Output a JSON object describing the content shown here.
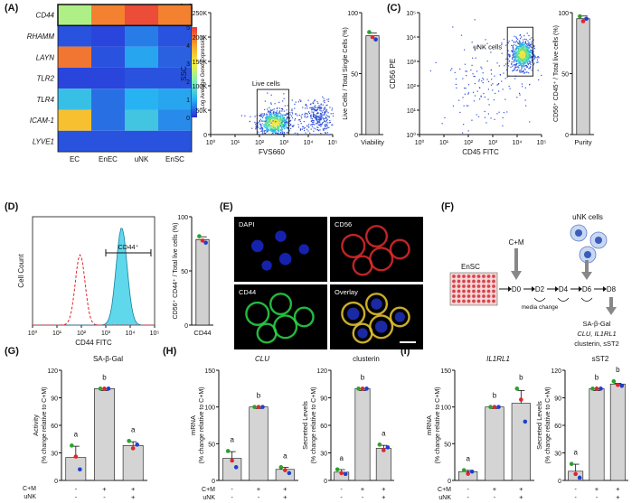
{
  "panels": {
    "A": "(A)",
    "B": "(B)",
    "C": "(C)",
    "D": "(D)",
    "E": "(E)",
    "F": "(F)",
    "G": "(G)",
    "H": "(H)",
    "I": "(I)"
  },
  "heatmap": {
    "rows": [
      "CD44",
      "RHAMM",
      "LAYN",
      "TLR2",
      "TLR4",
      "ICAM-1",
      "LYVE1"
    ],
    "cols": [
      "EC",
      "EnEC",
      "uNK",
      "EnSC"
    ],
    "values": [
      [
        2.4,
        4.3,
        4.8,
        4.3
      ],
      [
        0.3,
        0.2,
        0.6,
        0.3
      ],
      [
        4.4,
        0.3,
        0.9,
        0.4
      ],
      [
        0.2,
        0.2,
        0.3,
        0.3
      ],
      [
        1.2,
        0.5,
        1.0,
        0.9
      ],
      [
        3.6,
        0.5,
        1.3,
        0.7
      ],
      [
        0.3,
        0.3,
        0.3,
        0.3
      ]
    ],
    "scale_ticks": [
      "0",
      "1",
      "2",
      "3",
      "4",
      "5"
    ],
    "scale_label": "Log Average Gene Expression",
    "colors": [
      "#2a2ad6",
      "#27b3f2",
      "#7ef0b5",
      "#f7f03c",
      "#f7a02a",
      "#e8383b"
    ]
  },
  "flow_b": {
    "ylabel": "SSC",
    "xlabel": "FVS660",
    "yticks": [
      "0",
      "50K",
      "100K",
      "150K",
      "200K",
      "250K"
    ],
    "xticks": [
      "10⁰",
      "10¹",
      "10²",
      "10³",
      "10⁴",
      "10⁵"
    ],
    "gate": "Live cells"
  },
  "bar_b": {
    "ylabel": "Live Cells / Total Single Cells (%)",
    "xlabel": "Viability",
    "value": 81,
    "yticks": [
      "0",
      "50",
      "100"
    ]
  },
  "flow_c": {
    "ylabel": "CD56 PE",
    "xlabel": "CD45 FITC",
    "yticks": [
      "10⁰",
      "10¹",
      "10²",
      "10³",
      "10⁴",
      "10⁵"
    ],
    "xticks": [
      "10⁰",
      "10¹",
      "10²",
      "10³",
      "10⁴",
      "10⁵"
    ],
    "gate": "uNK cells"
  },
  "bar_c": {
    "ylabel": "CD56⁺ CD45⁺ / Total live cells (%)",
    "xlabel": "Purity",
    "value": 95,
    "yticks": [
      "0",
      "50",
      "100"
    ]
  },
  "hist_d": {
    "ylabel": "Cell Count",
    "xlabel": "CD44 FITC",
    "xticks": [
      "10⁰",
      "10¹",
      "10²",
      "10³",
      "10⁴",
      "10⁵"
    ],
    "gate": "CD44⁺"
  },
  "bar_d": {
    "ylabel": "CD56⁺ CD44⁺ / Total live cells (%)",
    "xlabel": "CD44",
    "value": 79,
    "yticks": [
      "0",
      "50",
      "100"
    ]
  },
  "micro": {
    "dapi": "DAPI",
    "cd56": "CD56",
    "cd44": "CD44",
    "overlay": "Overlay"
  },
  "schematic": {
    "ensc": "EnSC",
    "cm": "C+M",
    "unk": "uNK cells",
    "days": [
      "D0",
      "D2",
      "D4",
      "D6",
      "D8"
    ],
    "media": "media change",
    "readout1": "SA-β-Gal",
    "readout2": "CLU, IL1RL1",
    "readout3": "clusterin, sST2"
  },
  "treat": {
    "cm_label": "C+M",
    "unk_label": "uNK",
    "cm": [
      "-",
      "+",
      "+"
    ],
    "unk": [
      "-",
      "-",
      "+"
    ]
  },
  "chart_data": [
    {
      "type": "bar",
      "title": "SA-β-Gal",
      "ylabel": "Activity",
      "ylabel2": "(% change relative to C+M)",
      "yticks": [
        "0",
        "30",
        "60",
        "90",
        "120"
      ],
      "ylim": [
        0,
        120
      ],
      "values": [
        25,
        100,
        38
      ],
      "letters": [
        "a",
        "b",
        "a"
      ],
      "points": [
        [
          38,
          26,
          12
        ],
        [
          100,
          100,
          100
        ],
        [
          43,
          35,
          39
        ]
      ]
    },
    {
      "type": "bar",
      "title": "CLU",
      "ylabel": "mRNA",
      "ylabel2": "(% change relative to C+M)",
      "yticks": [
        "0",
        "50",
        "100",
        "150"
      ],
      "ylim": [
        0,
        150
      ],
      "values": [
        30,
        100,
        15
      ],
      "letters": [
        "a",
        "b",
        "a"
      ],
      "points": [
        [
          40,
          27,
          18
        ],
        [
          100,
          100,
          100
        ],
        [
          18,
          14,
          10
        ]
      ]
    },
    {
      "type": "bar",
      "title": "clusterin",
      "ylabel": "Secreted Levels",
      "ylabel2": "(% change relative to C+M)",
      "yticks": [
        "0",
        "30",
        "60",
        "90",
        "120"
      ],
      "ylim": [
        0,
        120
      ],
      "values": [
        9,
        100,
        35
      ],
      "letters": [
        "a",
        "b",
        "a"
      ],
      "points": [
        [
          12,
          8,
          7
        ],
        [
          100,
          100,
          100
        ],
        [
          39,
          33,
          36
        ]
      ]
    },
    {
      "type": "bar",
      "title": "IL1RL1",
      "ylabel": "mRNA",
      "ylabel2": "(% change relative to C+M)",
      "yticks": [
        "0",
        "50",
        "100",
        "150"
      ],
      "ylim": [
        0,
        150
      ],
      "values": [
        12,
        100,
        105
      ],
      "letters": [
        "a",
        "b",
        "b"
      ],
      "points": [
        [
          14,
          9,
          12
        ],
        [
          100,
          100,
          100
        ],
        [
          125,
          110,
          80
        ]
      ]
    },
    {
      "type": "bar",
      "title": "sST2",
      "ylabel": "Secreted Levels",
      "ylabel2": "(% change relative to C+M)",
      "yticks": [
        "0",
        "30",
        "60",
        "90",
        "120"
      ],
      "ylim": [
        0,
        120
      ],
      "values": [
        10,
        100,
        105
      ],
      "letters": [
        "a",
        "b",
        "b"
      ],
      "points": [
        [
          18,
          7,
          3
        ],
        [
          100,
          100,
          100
        ],
        [
          108,
          104,
          103
        ]
      ]
    }
  ],
  "dot_colors": [
    "#2ca02c",
    "#e0262a",
    "#1f3fd0"
  ]
}
